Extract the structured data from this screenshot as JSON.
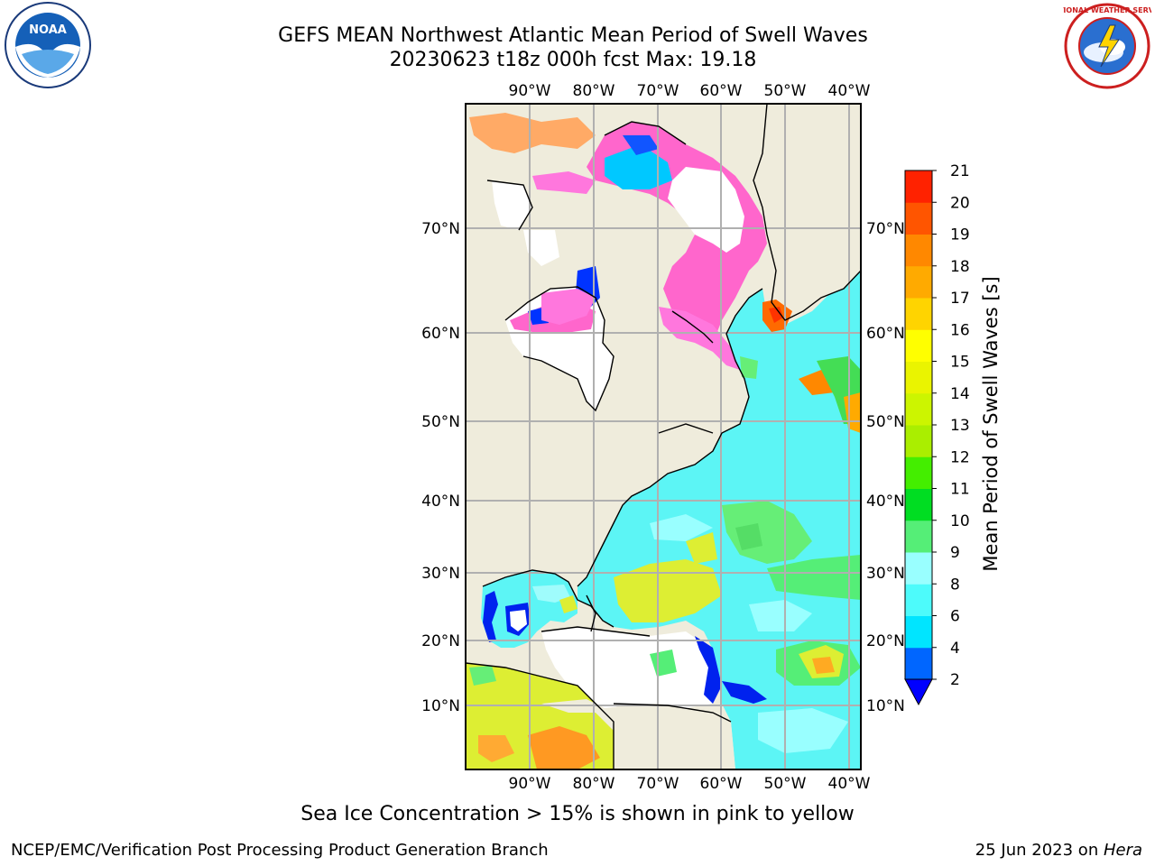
{
  "header": {
    "title_line1": "GEFS MEAN Northwest Atlantic Mean Period of Swell Waves",
    "title_line2": "20230623 t18z 000h fcst   Max: 19.18"
  },
  "logos": {
    "left": "noaa-logo",
    "right": "nws-logo",
    "left_text": "NOAA",
    "right_text": "NATIONAL WEATHER SERVICE"
  },
  "map": {
    "lon_labels": [
      "90°W",
      "80°W",
      "70°W",
      "60°W",
      "50°W",
      "40°W"
    ],
    "lat_labels": [
      "70°N",
      "60°N",
      "50°N",
      "40°N",
      "30°N",
      "20°N",
      "10°N"
    ],
    "colors": {
      "land": "#efecdc",
      "ocean_main": "#5cf5f5",
      "ice_mask": "#ffffff",
      "ice_pink": "#ff66cc"
    }
  },
  "colorbar": {
    "label": "Mean Period of Swell Waves [s]",
    "ticks": [
      "2",
      "4",
      "6",
      "8",
      "9",
      "10",
      "11",
      "12",
      "13",
      "14",
      "15",
      "16",
      "17",
      "18",
      "19",
      "20",
      "21"
    ],
    "colors": [
      "#0066ff",
      "#00e5ff",
      "#4dfbfb",
      "#99ffff",
      "#55ee77",
      "#00dd22",
      "#44ee00",
      "#aaee00",
      "#ccf500",
      "#eaf400",
      "#ffff00",
      "#ffd400",
      "#ffaa00",
      "#ff8800",
      "#ff5500",
      "#ff2200"
    ],
    "under_color": "#0000ff"
  },
  "footer": {
    "note": "Sea Ice Concentration > 15% is shown in pink to yellow",
    "left": "NCEP/EMC/Verification Post Processing Product Generation Branch",
    "date": "25 Jun 2023 on ",
    "machine": "Hera"
  }
}
